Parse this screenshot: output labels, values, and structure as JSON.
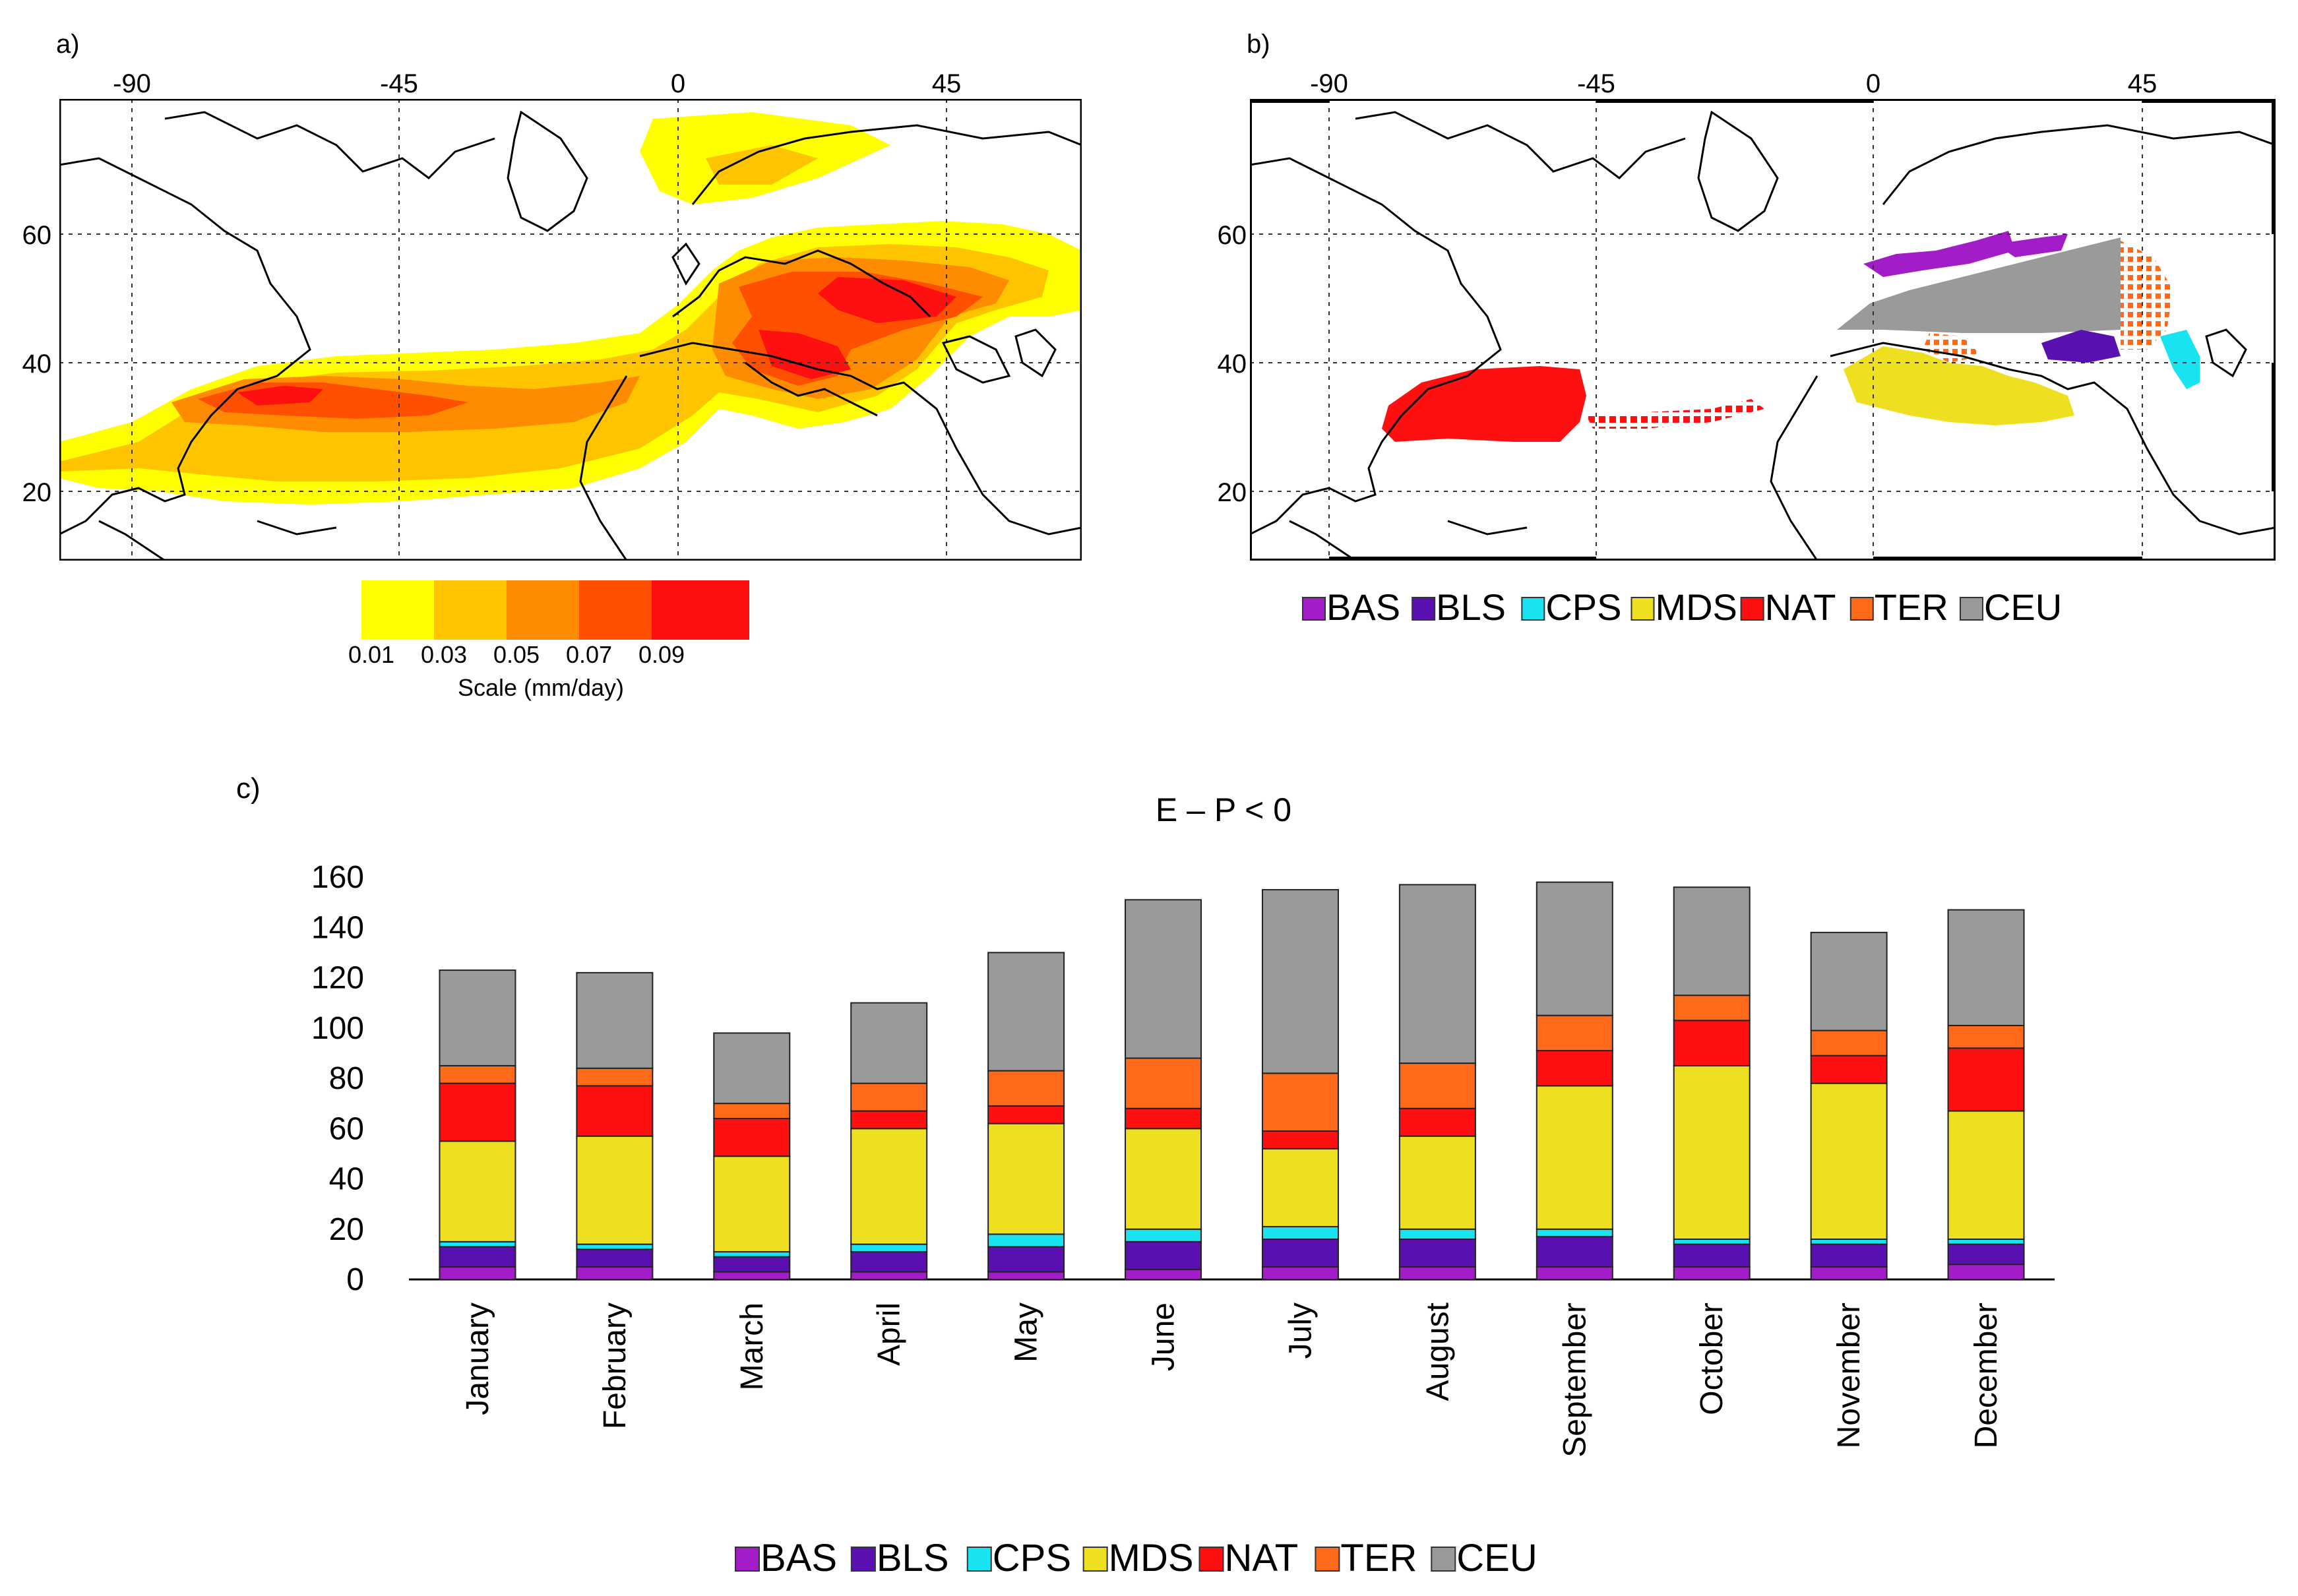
{
  "panel_labels": {
    "a": "a)",
    "b": "b)",
    "c": "c)"
  },
  "colors": {
    "BAS": "#a21cc7",
    "BLS": "#5a10b0",
    "CPS": "#19e3f0",
    "MDS": "#eee020",
    "NAT": "#ff1010",
    "TER": "#ff6a1a",
    "CEU": "#9a9a9a",
    "scale": [
      "#ffff00",
      "#ffc400",
      "#ff8c00",
      "#ff5000",
      "#ff1010"
    ],
    "land": "#ffffff",
    "coast": "#000000"
  },
  "icons": {
    "legend_swatch": "square-swatch-icon"
  },
  "map_a": {
    "lon_ticks": [
      "-90",
      "-45",
      "0",
      "45"
    ],
    "lat_ticks": [
      "60",
      "40",
      "20"
    ],
    "scale_ticks": [
      "0.01",
      "0.03",
      "0.05",
      "0.07",
      "0.09"
    ],
    "scale_label": "Scale (mm/day)",
    "scale_levels": [
      0.01,
      0.03,
      0.05,
      0.07,
      0.09
    ]
  },
  "map_b": {
    "lon_ticks": [
      "-90",
      "-45",
      "0",
      "45"
    ],
    "lat_ticks": [
      "60",
      "40",
      "20"
    ],
    "legend": [
      "BAS",
      "BLS",
      "CPS",
      "MDS",
      "NAT",
      "TER",
      "CEU"
    ]
  },
  "chart_data": {
    "type": "bar",
    "stacked": true,
    "title": "E – P < 0",
    "xlabel": "",
    "ylabel": "",
    "ylim": [
      0,
      160
    ],
    "yticks": [
      0,
      20,
      40,
      60,
      80,
      100,
      120,
      140,
      160
    ],
    "ytick_labels": [
      "0",
      "20",
      "40",
      "60",
      "80",
      "100",
      "120",
      "140",
      "160"
    ],
    "categories": [
      "January",
      "February",
      "March",
      "April",
      "May",
      "June",
      "July",
      "August",
      "September",
      "October",
      "November",
      "December"
    ],
    "legend": [
      "BAS",
      "BLS",
      "CPS",
      "MDS",
      "NAT",
      "TER",
      "CEU"
    ],
    "series": [
      {
        "name": "BAS",
        "values": [
          5,
          5,
          3,
          3,
          3,
          4,
          5,
          5,
          5,
          5,
          5,
          6
        ]
      },
      {
        "name": "BLS",
        "values": [
          8,
          7,
          6,
          8,
          10,
          11,
          11,
          11,
          12,
          9,
          9,
          8
        ]
      },
      {
        "name": "CPS",
        "values": [
          2,
          2,
          2,
          3,
          5,
          5,
          5,
          4,
          3,
          2,
          2,
          2
        ]
      },
      {
        "name": "MDS",
        "values": [
          40,
          43,
          38,
          46,
          44,
          40,
          31,
          37,
          57,
          69,
          62,
          51
        ]
      },
      {
        "name": "NAT",
        "values": [
          23,
          20,
          15,
          7,
          7,
          8,
          7,
          11,
          14,
          18,
          11,
          25
        ]
      },
      {
        "name": "TER",
        "values": [
          7,
          7,
          6,
          11,
          14,
          20,
          23,
          18,
          14,
          10,
          10,
          9
        ]
      },
      {
        "name": "CEU",
        "values": [
          38,
          38,
          28,
          32,
          47,
          63,
          73,
          71,
          53,
          43,
          39,
          46
        ]
      }
    ]
  }
}
